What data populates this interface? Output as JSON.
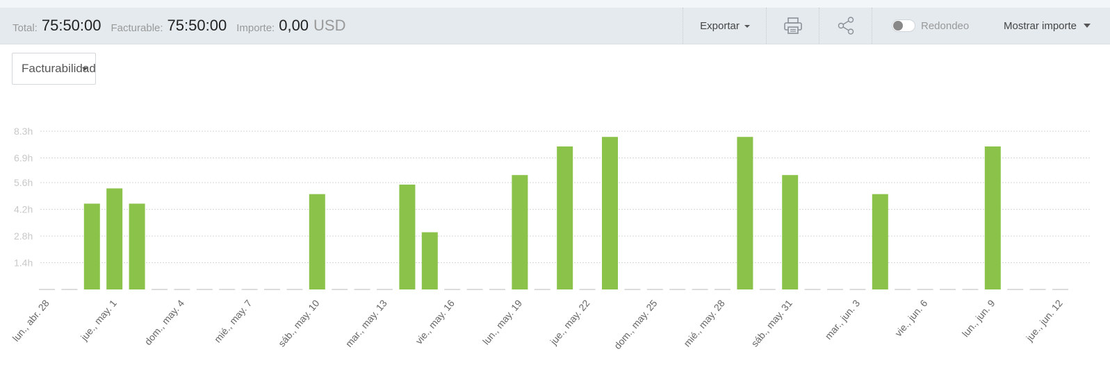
{
  "header": {
    "total_label": "Total:",
    "total_value": "75:50:00",
    "billable_label": "Facturable:",
    "billable_value": "75:50:00",
    "amount_label": "Importe:",
    "amount_value": "0,00",
    "amount_currency": "USD",
    "export_label": "Exportar",
    "print_icon": "printer-icon",
    "share_icon": "share-icon",
    "rounding_label": "Redondeo",
    "rounding_on": false,
    "show_amount_label": "Mostrar importe"
  },
  "filter": {
    "selected": "Facturabilidad"
  },
  "colors": {
    "bar": "#8bc34a",
    "grid": "#d5d5d5",
    "axis_text": "#666666",
    "tick_text": "#c8c8c8"
  },
  "chart_data": {
    "type": "bar",
    "title": "",
    "xlabel": "",
    "ylabel": "",
    "yticks": [
      "1.4h",
      "2.8h",
      "4.2h",
      "5.6h",
      "6.9h",
      "8.3h"
    ],
    "ytick_values": [
      1.4,
      2.8,
      4.2,
      5.6,
      6.9,
      8.3
    ],
    "ylim": [
      0,
      8.3
    ],
    "grid": true,
    "x_tick_labels": [
      "lun., abr. 28",
      "jue., may. 1",
      "dom., may. 4",
      "mié., may. 7",
      "sáb., may. 10",
      "mar., may. 13",
      "vie., may. 16",
      "lun., may. 19",
      "jue., may. 22",
      "dom., may. 25",
      "mié., may. 28",
      "sáb., may. 31",
      "mar., jun. 3",
      "vie., jun. 6",
      "lun., jun. 9",
      "jue., jun. 12"
    ],
    "categories": [
      "2025-04-28",
      "2025-04-29",
      "2025-04-30",
      "2025-05-01",
      "2025-05-02",
      "2025-05-03",
      "2025-05-04",
      "2025-05-05",
      "2025-05-06",
      "2025-05-07",
      "2025-05-08",
      "2025-05-09",
      "2025-05-10",
      "2025-05-11",
      "2025-05-12",
      "2025-05-13",
      "2025-05-14",
      "2025-05-15",
      "2025-05-16",
      "2025-05-17",
      "2025-05-18",
      "2025-05-19",
      "2025-05-20",
      "2025-05-21",
      "2025-05-22",
      "2025-05-23",
      "2025-05-24",
      "2025-05-25",
      "2025-05-26",
      "2025-05-27",
      "2025-05-28",
      "2025-05-29",
      "2025-05-30",
      "2025-05-31",
      "2025-06-01",
      "2025-06-02",
      "2025-06-03",
      "2025-06-04",
      "2025-06-05",
      "2025-06-06",
      "2025-06-07",
      "2025-06-08",
      "2025-06-09",
      "2025-06-10",
      "2025-06-11",
      "2025-06-12"
    ],
    "values": [
      0,
      0,
      4.5,
      5.3,
      4.5,
      0,
      0,
      0,
      0,
      0,
      0,
      0,
      5.0,
      0,
      0,
      0,
      5.5,
      3.0,
      0,
      0,
      0,
      6.0,
      0,
      7.5,
      0,
      8.0,
      0,
      0,
      0,
      0,
      0,
      8.0,
      0,
      6.0,
      0,
      0,
      0,
      5.0,
      0,
      0,
      0,
      0,
      7.5,
      0,
      0,
      0
    ]
  }
}
